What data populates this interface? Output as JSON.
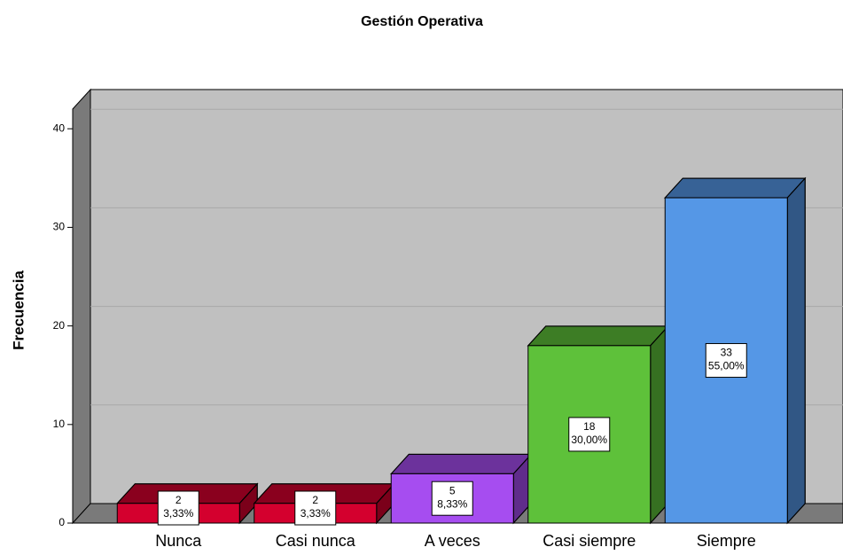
{
  "chart_data": {
    "type": "bar3d",
    "title": "Gestión Operativa",
    "y_label": "Frecuencia",
    "categories": [
      "Nunca",
      "Casi nunca",
      "A veces",
      "Casi siempre",
      "Siempre"
    ],
    "values": [
      2,
      2,
      5,
      18,
      33
    ],
    "percentages": [
      3.33,
      3.33,
      8.33,
      30.0,
      55.0
    ],
    "percentage_labels": [
      "3,33%",
      "3,33%",
      "8,33%",
      "30,00%",
      "55,00%"
    ],
    "colors": [
      "#d4002e",
      "#d4002e",
      "#a64df0",
      "#5ec13a",
      "#5597e6"
    ],
    "ylim": [
      0,
      42
    ],
    "yticks": [
      0,
      10,
      20,
      30,
      40
    ],
    "grid": true
  }
}
